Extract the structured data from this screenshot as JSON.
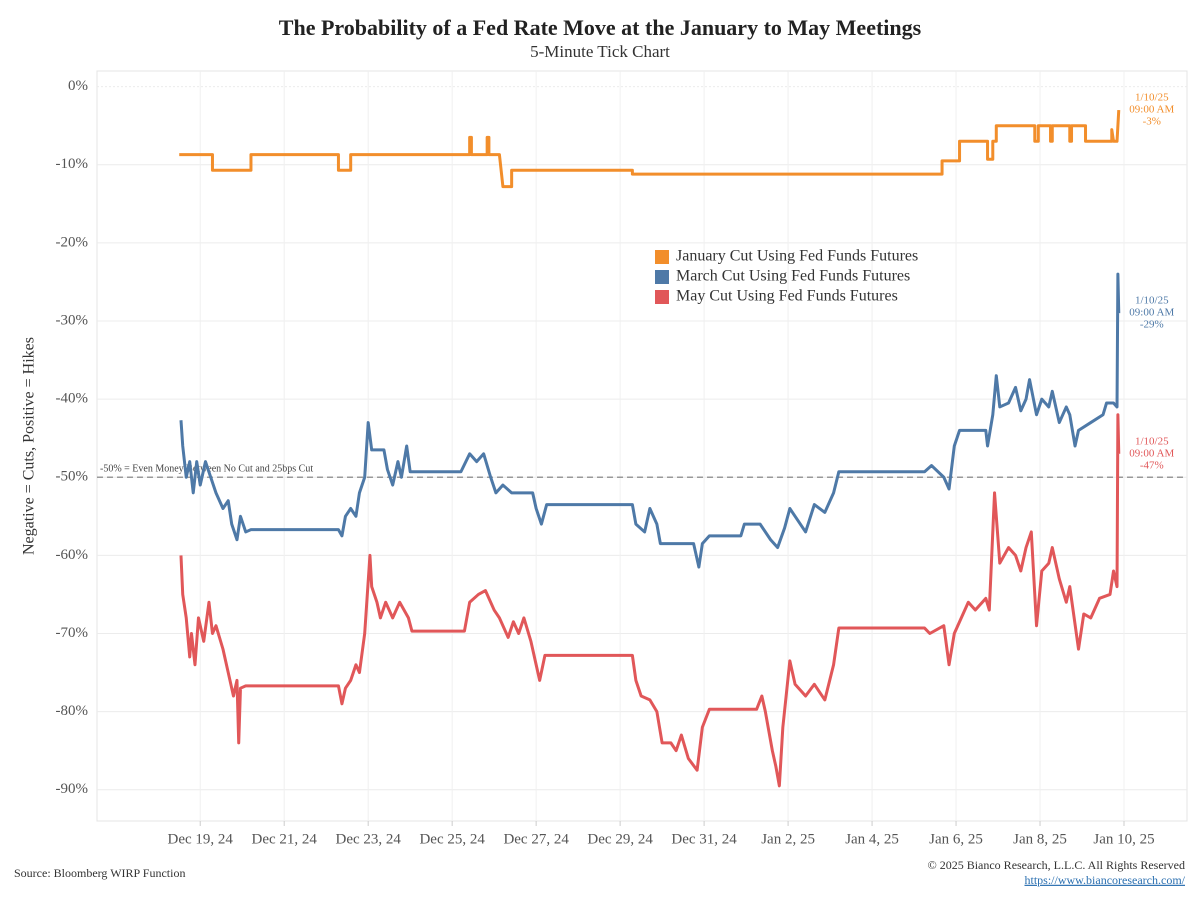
{
  "chart_data": {
    "type": "line",
    "title": "The Probability of a Fed Rate Move at the January to May Meetings",
    "subtitle": "5-Minute Tick Chart",
    "y_label": "Negative = Cuts, Positive = Hikes",
    "source": "Source: Bloomberg WIRP Function",
    "copyright": "© 2025 Bianco Research, L.L.C. All Rights Reserved",
    "url": "https://www.biancoresearch.com/",
    "xlim": [
      "2024-12-17T01:00",
      "2025-01-12T00:00"
    ],
    "xticks": [
      {
        "value": "2024-12-19T12:00",
        "label": "Dec 19, 24"
      },
      {
        "value": "2024-12-21T12:00",
        "label": "Dec 21, 24"
      },
      {
        "value": "2024-12-23T12:00",
        "label": "Dec 23, 24"
      },
      {
        "value": "2024-12-25T12:00",
        "label": "Dec 25, 24"
      },
      {
        "value": "2024-12-27T12:00",
        "label": "Dec 27, 24"
      },
      {
        "value": "2024-12-29T12:00",
        "label": "Dec 29, 24"
      },
      {
        "value": "2024-12-31T12:00",
        "label": "Dec 31, 24"
      },
      {
        "value": "2025-01-02T12:00",
        "label": "Jan 2, 25"
      },
      {
        "value": "2025-01-04T12:00",
        "label": "Jan 4, 25"
      },
      {
        "value": "2025-01-06T12:00",
        "label": "Jan 6, 25"
      },
      {
        "value": "2025-01-08T12:00",
        "label": "Jan 8, 25"
      },
      {
        "value": "2025-01-10T12:00",
        "label": "Jan 10, 25"
      }
    ],
    "ylim": [
      -94,
      2
    ],
    "yticks": [
      {
        "value": 0,
        "label": "0%"
      },
      {
        "value": -10,
        "label": "-10%"
      },
      {
        "value": -20,
        "label": "-20%"
      },
      {
        "value": -30,
        "label": "-30%"
      },
      {
        "value": -40,
        "label": "-40%"
      },
      {
        "value": -50,
        "label": "-50%"
      },
      {
        "value": -60,
        "label": "-60%"
      },
      {
        "value": -70,
        "label": "-70%"
      },
      {
        "value": -80,
        "label": "-80%"
      },
      {
        "value": -90,
        "label": "-90%"
      }
    ],
    "grid": true,
    "reference_lines": [
      {
        "value": -50,
        "label": "-50% = Even Money Between No Cut and 25bps Cut",
        "color": "#999999"
      }
    ],
    "series": [
      {
        "name": "January Cut Using Fed Funds Futures",
        "color": "#f28e2b",
        "end_label": [
          "1/10/25",
          "09:00 AM",
          "-3%"
        ],
        "x": [
          "2024-12-19T00:00",
          "2024-12-19T19:00",
          "2024-12-19T19:00",
          "2024-12-20T17:00",
          "2024-12-20T17:00",
          "2024-12-22T19:00",
          "2024-12-22T19:00",
          "2024-12-23T02:00",
          "2024-12-23T02:00",
          "2024-12-25T22:00",
          "2024-12-25T22:00",
          "2024-12-25T23:00",
          "2024-12-25T23:00",
          "2024-12-26T08:00",
          "2024-12-26T08:00",
          "2024-12-26T09:00",
          "2024-12-26T09:00",
          "2024-12-26T15:00",
          "2024-12-26T17:00",
          "2024-12-26T22:00",
          "2024-12-26T22:00",
          "2024-12-29T19:00",
          "2024-12-29T19:00",
          "2025-01-06T04:00",
          "2025-01-06T04:00",
          "2025-01-06T14:00",
          "2025-01-06T14:00",
          "2025-01-07T06:00",
          "2025-01-07T06:00",
          "2025-01-07T09:00",
          "2025-01-07T09:00",
          "2025-01-07T11:00",
          "2025-01-07T11:00",
          "2025-01-08T09:00",
          "2025-01-08T09:00",
          "2025-01-08T11:00",
          "2025-01-08T11:00",
          "2025-01-08T18:00",
          "2025-01-08T18:00",
          "2025-01-08T19:00",
          "2025-01-08T19:00",
          "2025-01-09T05:00",
          "2025-01-09T05:00",
          "2025-01-09T06:00",
          "2025-01-09T06:00",
          "2025-01-09T14:00",
          "2025-01-09T14:00",
          "2025-01-10T05:00",
          "2025-01-10T05:00",
          "2025-01-10T06:00",
          "2025-01-10T08:00",
          "2025-01-10T09:00"
        ],
        "values": [
          -8.7,
          -8.7,
          -10.7,
          -10.7,
          -8.7,
          -8.7,
          -10.7,
          -10.7,
          -8.7,
          -8.7,
          -6.5,
          -6.5,
          -8.7,
          -8.7,
          -6.5,
          -6.5,
          -8.7,
          -8.7,
          -12.8,
          -12.8,
          -10.7,
          -10.7,
          -11.2,
          -11.2,
          -9.5,
          -9.5,
          -7,
          -7,
          -9.3,
          -9.3,
          -7,
          -7,
          -5,
          -5,
          -7,
          -7,
          -5,
          -5,
          -7,
          -7,
          -5,
          -5,
          -7,
          -7,
          -5,
          -5,
          -7,
          -7,
          -5.5,
          -7,
          -7,
          -3
        ]
      },
      {
        "name": "March Cut Using Fed Funds Futures",
        "color": "#4e79a7",
        "end_label": [
          "1/10/25",
          "09:00 AM",
          "-29%"
        ],
        "x": [
          "2024-12-19T01:00",
          "2024-12-19T02:00",
          "2024-12-19T04:00",
          "2024-12-19T06:00",
          "2024-12-19T08:00",
          "2024-12-19T10:00",
          "2024-12-19T12:00",
          "2024-12-19T15:00",
          "2024-12-19T18:00",
          "2024-12-19T21:00",
          "2024-12-20T01:00",
          "2024-12-20T04:00",
          "2024-12-20T06:00",
          "2024-12-20T09:00",
          "2024-12-20T11:00",
          "2024-12-20T14:00",
          "2024-12-20T17:00",
          "2024-12-22T19:00",
          "2024-12-22T21:00",
          "2024-12-22T23:00",
          "2024-12-23T02:00",
          "2024-12-23T05:00",
          "2024-12-23T07:00",
          "2024-12-23T10:00",
          "2024-12-23T12:00",
          "2024-12-23T14:00",
          "2024-12-23T21:00",
          "2024-12-23T23:00",
          "2024-12-24T02:00",
          "2024-12-24T05:00",
          "2024-12-24T07:00",
          "2024-12-24T10:00",
          "2024-12-24T12:00",
          "2024-12-25T17:00",
          "2024-12-25T22:00",
          "2024-12-26T02:00",
          "2024-12-26T06:00",
          "2024-12-26T10:00",
          "2024-12-26T13:00",
          "2024-12-26T17:00",
          "2024-12-26T22:00",
          "2024-12-27T10:00",
          "2024-12-27T12:00",
          "2024-12-27T15:00",
          "2024-12-27T18:00",
          "2024-12-29T19:00",
          "2024-12-29T21:00",
          "2024-12-30T02:00",
          "2024-12-30T05:00",
          "2024-12-30T09:00",
          "2024-12-30T11:00",
          "2024-12-31T06:00",
          "2024-12-31T09:00",
          "2024-12-31T11:00",
          "2024-12-31T15:00",
          "2025-01-01T09:00",
          "2025-01-01T11:00",
          "2025-01-01T20:00",
          "2025-01-02T02:00",
          "2025-01-02T06:00",
          "2025-01-02T10:00",
          "2025-01-02T13:00",
          "2025-01-02T16:00",
          "2025-01-02T22:00",
          "2025-01-03T03:00",
          "2025-01-03T09:00",
          "2025-01-03T14:00",
          "2025-01-03T17:00",
          "2025-01-05T18:00",
          "2025-01-05T22:00",
          "2025-01-06T05:00",
          "2025-01-06T08:00",
          "2025-01-06T11:00",
          "2025-01-06T14:00",
          "2025-01-07T05:00",
          "2025-01-07T06:00",
          "2025-01-07T09:00",
          "2025-01-07T11:00",
          "2025-01-07T13:00",
          "2025-01-07T18:00",
          "2025-01-07T22:00",
          "2025-01-08T01:00",
          "2025-01-08T04:00",
          "2025-01-08T06:00",
          "2025-01-08T10:00",
          "2025-01-08T13:00",
          "2025-01-08T17:00",
          "2025-01-08T19:00",
          "2025-01-08T23:00",
          "2025-01-09T03:00",
          "2025-01-09T05:00",
          "2025-01-09T08:00",
          "2025-01-09T10:00",
          "2025-01-09T17:00",
          "2025-01-10T00:00",
          "2025-01-10T02:00",
          "2025-01-10T06:00",
          "2025-01-10T08:00",
          "2025-01-10T08:30",
          "2025-01-10T09:00"
        ],
        "values": [
          -42.7,
          -46,
          -50,
          -48,
          -52,
          -48,
          -51,
          -48,
          -50,
          -52,
          -54,
          -53,
          -56,
          -58,
          -55,
          -57,
          -56.7,
          -56.7,
          -57.5,
          -55,
          -54,
          -55,
          -52,
          -50,
          -43,
          -46.5,
          -46.5,
          -49,
          -51,
          -48,
          -50,
          -46,
          -49.3,
          -49.3,
          -47,
          -48,
          -47,
          -50,
          -52,
          -51,
          -52,
          -52,
          -54,
          -56,
          -53.5,
          -53.5,
          -56,
          -57,
          -54,
          -56,
          -58.5,
          -58.5,
          -61.5,
          -58.5,
          -57.5,
          -57.5,
          -56,
          -56,
          -58,
          -59,
          -56.5,
          -54,
          -55,
          -57,
          -53.5,
          -54.5,
          -52,
          -49.3,
          -49.3,
          -48.5,
          -50,
          -51.5,
          -46,
          -44,
          -44,
          -46,
          -42,
          -37,
          -41,
          -40.5,
          -38.5,
          -41.5,
          -40,
          -37.5,
          -42,
          -40,
          -41,
          -39,
          -43,
          -41,
          -42,
          -46,
          -44,
          -43,
          -42,
          -40.5,
          -40.5,
          -41,
          -24,
          -29
        ]
      },
      {
        "name": "May Cut Using Fed Funds Futures",
        "color": "#e15759",
        "end_label": [
          "1/10/25",
          "09:00 AM",
          "-47%"
        ],
        "x": [
          "2024-12-19T01:00",
          "2024-12-19T02:00",
          "2024-12-19T04:00",
          "2024-12-19T06:00",
          "2024-12-19T07:00",
          "2024-12-19T09:00",
          "2024-12-19T11:00",
          "2024-12-19T14:00",
          "2024-12-19T17:00",
          "2024-12-19T19:00",
          "2024-12-19T21:00",
          "2024-12-20T01:00",
          "2024-12-20T04:00",
          "2024-12-20T07:00",
          "2024-12-20T09:00",
          "2024-12-20T10:00",
          "2024-12-20T11:00",
          "2024-12-20T14:00",
          "2024-12-22T19:00",
          "2024-12-22T21:00",
          "2024-12-22T23:00",
          "2024-12-23T02:00",
          "2024-12-23T05:00",
          "2024-12-23T07:00",
          "2024-12-23T10:00",
          "2024-12-23T13:00",
          "2024-12-23T14:00",
          "2024-12-23T17:00",
          "2024-12-23T19:00",
          "2024-12-23T22:00",
          "2024-12-24T02:00",
          "2024-12-24T06:00",
          "2024-12-24T11:00",
          "2024-12-24T13:00",
          "2024-12-25T19:00",
          "2024-12-25T22:00",
          "2024-12-26T03:00",
          "2024-12-26T07:00",
          "2024-12-26T12:00",
          "2024-12-26T15:00",
          "2024-12-26T20:00",
          "2024-12-26T23:00",
          "2024-12-27T02:00",
          "2024-12-27T05:00",
          "2024-12-27T09:00",
          "2024-12-27T12:00",
          "2024-12-27T14:00",
          "2024-12-27T17:00",
          "2024-12-29T19:00",
          "2024-12-29T21:00",
          "2024-12-30T00:00",
          "2024-12-30T05:00",
          "2024-12-30T09:00",
          "2024-12-30T12:00",
          "2024-12-30T17:00",
          "2024-12-30T20:00",
          "2024-12-30T23:00",
          "2024-12-31T03:00",
          "2024-12-31T08:00",
          "2024-12-31T11:00",
          "2024-12-31T15:00",
          "2025-01-01T18:00",
          "2025-01-01T21:00",
          "2025-01-01T23:00",
          "2025-01-02T03:00",
          "2025-01-02T05:00",
          "2025-01-02T07:00",
          "2025-01-02T09:00",
          "2025-01-02T13:00",
          "2025-01-02T16:00",
          "2025-01-02T22:00",
          "2025-01-03T03:00",
          "2025-01-03T09:00",
          "2025-01-03T14:00",
          "2025-01-03T17:00",
          "2025-01-05T18:00",
          "2025-01-05T21:00",
          "2025-01-06T05:00",
          "2025-01-06T08:00",
          "2025-01-06T11:00",
          "2025-01-06T15:00",
          "2025-01-06T19:00",
          "2025-01-06T23:00",
          "2025-01-07T05:00",
          "2025-01-07T07:00",
          "2025-01-07T10:00",
          "2025-01-07T13:00",
          "2025-01-07T18:00",
          "2025-01-07T22:00",
          "2025-01-08T01:00",
          "2025-01-08T04:00",
          "2025-01-08T07:00",
          "2025-01-08T10:00",
          "2025-01-08T13:00",
          "2025-01-08T17:00",
          "2025-01-08T19:00",
          "2025-01-08T23:00",
          "2025-01-09T03:00",
          "2025-01-09T05:00",
          "2025-01-09T10:00",
          "2025-01-09T13:00",
          "2025-01-09T17:00",
          "2025-01-09T22:00",
          "2025-01-10T04:00",
          "2025-01-10T06:00",
          "2025-01-10T08:00",
          "2025-01-10T08:30",
          "2025-01-10T09:00"
        ],
        "values": [
          -60,
          -65,
          -68,
          -73,
          -70,
          -74,
          -68,
          -71,
          -66,
          -70,
          -69,
          -72,
          -75,
          -78,
          -76,
          -84,
          -77,
          -76.7,
          -76.7,
          -79,
          -77,
          -76,
          -74,
          -75,
          -70,
          -60,
          -64,
          -66,
          -68,
          -66,
          -68,
          -66,
          -68,
          -69.7,
          -69.7,
          -66,
          -65,
          -64.5,
          -67,
          -68,
          -70.5,
          -68.5,
          -70,
          -68,
          -71,
          -74,
          -76,
          -72.8,
          -72.8,
          -76,
          -78,
          -78.5,
          -80,
          -84,
          -84,
          -85,
          -83,
          -86,
          -87.5,
          -82,
          -79.7,
          -79.7,
          -78,
          -80,
          -85,
          -87,
          -89.5,
          -82,
          -73.5,
          -76.5,
          -78,
          -76.5,
          -78.5,
          -74,
          -69.3,
          -69.3,
          -70,
          -69,
          -74,
          -70,
          -68,
          -66,
          -67,
          -65.5,
          -67,
          -52,
          -61,
          -59,
          -60,
          -62,
          -59,
          -57,
          -69,
          -62,
          -61,
          -59,
          -63,
          -66,
          -64,
          -72,
          -67.5,
          -68,
          -65.5,
          -65,
          -62,
          -64,
          -42,
          -47
        ]
      }
    ]
  }
}
